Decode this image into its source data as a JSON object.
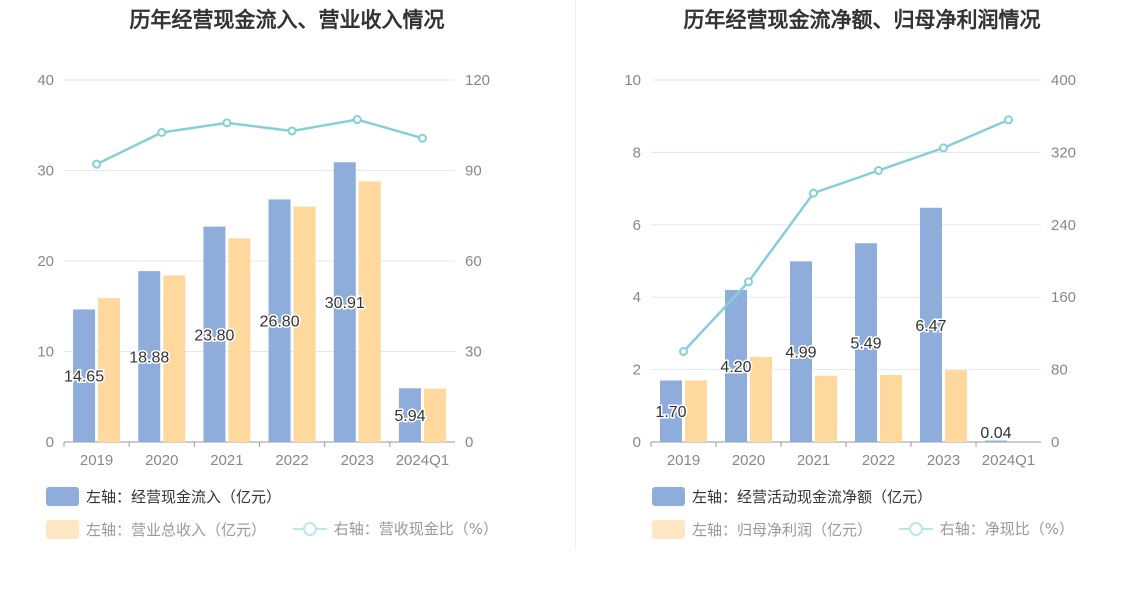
{
  "colors": {
    "bar_primary": "#8eaddb",
    "bar_secondary": "#ffd89e",
    "line": "#85d0d8",
    "grid": "#e3e7ee",
    "axis_text": "#888888",
    "label_text": "#333333"
  },
  "chart_data": [
    {
      "type": "bar",
      "title": "历年经营现金流入、营业收入情况",
      "categories": [
        "2019",
        "2020",
        "2021",
        "2022",
        "2023",
        "2024Q1"
      ],
      "series": [
        {
          "name": "左轴：经营现金流入（亿元）",
          "axis": "left",
          "type": "bar",
          "values": [
            14.65,
            18.88,
            23.8,
            26.8,
            30.91,
            5.94
          ],
          "labels": [
            "14.65",
            "18.88",
            "23.80",
            "26.80",
            "30.91",
            "5.94"
          ]
        },
        {
          "name": "左轴：营业总收入（亿元）",
          "axis": "left",
          "type": "bar",
          "values": [
            15.9,
            18.4,
            22.5,
            26.0,
            28.8,
            5.9
          ]
        },
        {
          "name": "右轴：营收现金比（%）",
          "axis": "right",
          "type": "line",
          "values": [
            92.1,
            102.6,
            105.8,
            103.1,
            106.9,
            100.7
          ]
        }
      ],
      "yaxis_left": {
        "min": 0,
        "max": 40,
        "ticks": [
          "0",
          "10",
          "20",
          "30",
          "40"
        ]
      },
      "yaxis_right": {
        "min": 0,
        "max": 120,
        "ticks": [
          "0",
          "30",
          "60",
          "90",
          "120"
        ]
      },
      "grid": true,
      "legend_position": "bottom-left"
    },
    {
      "type": "bar",
      "title": "历年经营现金流净额、归母净利润情况",
      "categories": [
        "2019",
        "2020",
        "2021",
        "2022",
        "2023",
        "2024Q1"
      ],
      "series": [
        {
          "name": "左轴：经营活动现金流净额（亿元）",
          "axis": "left",
          "type": "bar",
          "values": [
            1.7,
            4.2,
            4.99,
            5.49,
            6.47,
            0.04
          ],
          "labels": [
            "1.70",
            "4.20",
            "4.99",
            "5.49",
            "6.47",
            "0.04"
          ]
        },
        {
          "name": "左轴：归母净利润（亿元）",
          "axis": "left",
          "type": "bar",
          "values": [
            1.7,
            2.35,
            1.83,
            1.85,
            1.98,
            null
          ]
        },
        {
          "name": "右轴：净现比（%）",
          "axis": "right",
          "type": "line",
          "values": [
            100,
            177,
            275,
            300,
            325,
            356
          ]
        }
      ],
      "yaxis_left": {
        "min": 0,
        "max": 10,
        "ticks": [
          "0",
          "2",
          "4",
          "6",
          "8",
          "10"
        ]
      },
      "yaxis_right": {
        "min": 0,
        "max": 400,
        "ticks": [
          "0",
          "80",
          "160",
          "240",
          "320",
          "400"
        ]
      },
      "grid": true,
      "legend_position": "bottom-left"
    }
  ]
}
